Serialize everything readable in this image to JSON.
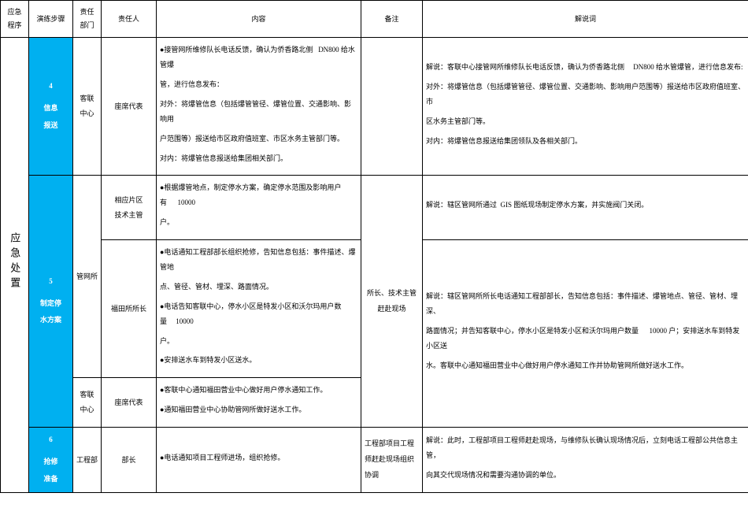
{
  "headers": {
    "program": "应急\n程序",
    "step": "演练步骤",
    "dept": "责任\n部门",
    "person": "责任人",
    "content": "内容",
    "remark": "备注",
    "script": "解说词"
  },
  "program_label": "应急处置",
  "steps": {
    "s4": {
      "num": "4",
      "name_l1": "信息",
      "name_l2": "报送"
    },
    "s5": {
      "num": "5",
      "name_l1": "制定停",
      "name_l2": "水方案"
    },
    "s6": {
      "num": "6",
      "name_l1": "抢修",
      "name_l2": "准备"
    }
  },
  "depts": {
    "kelian": "客联\n中心",
    "guanwang": "管网所",
    "gongcheng": "工程部"
  },
  "persons": {
    "zuoxi": "座席代表",
    "pianqu": "相应片区\n技术主管",
    "futian": "福田所所长",
    "buzhang": "部长"
  },
  "content": {
    "s4_1": "●接管网所维修队长电话反馈，确认为侨香路北侧",
    "s4_1b": "DN800 给水管爆",
    "s4_1c": "管，进行信息发布：",
    "s4_2": "对外：将爆管信息（包括爆管管径、爆管位置、交通影响、影响用",
    "s4_2b": "户范围等）报送给市区政府值班室、市区水务主管部门等。",
    "s4_3": "对内：将爆管信息报送给集团相关部门。",
    "s5a_1": "●根据爆管地点，制定停水方案，确定停水范围及影响用户有",
    "s5a_1n": "10000",
    "s5a_1c": "户。",
    "s5b_1": "●电话通知工程部部长组织抢修，告知信息包括：事件描述、爆管地",
    "s5b_1b": "点、管径、管材、埋深、路面情况。",
    "s5b_2": "●电话告知客联中心，停水小区是特发小区和沃尔玛用户数量",
    "s5b_2n": "10000",
    "s5b_2c": "户。",
    "s5b_3": "●安排送水车到特发小区送水。",
    "s5c_1": "●客联中心通知福田营业中心做好用户停水通知工作。",
    "s5c_2": "●通知福田营业中心协助管网所做好送水工作。",
    "s6_1": "●电话通知项目工程师进场，组织抢修。"
  },
  "remarks": {
    "s5": "所长、技术主管赶赴现场",
    "s6": "工程部项目工程师赶赴现场组织协调"
  },
  "script": {
    "s4_1a": "解说：客联中心接管网所维修队长电话反馈，确认为侨香路北侧",
    "s4_1b": "DN800 给水管爆管，进行信息发布:",
    "s4_2": "对外：将爆管信息（包括爆管管径、爆管位置、交通影响、影响用户范围等）报送给市区政府值班室、市",
    "s4_2b": "区水务主管部门等。",
    "s4_3": "对内：将爆管信息报送给集团领队及各相关部门。",
    "s5a_1a": "解说：辖区管网所通过",
    "s5a_1b": "GIS 图纸现场制定停水方案，并实施阀门关闭。",
    "s5b_1": "解说：辖区管网所所长电话通知工程部部长，告知信息包括：事件描述、爆管地点、管径、管材、埋深、",
    "s5b_2a": "路面情况；并告知客联中心，停水小区是特发小区和沃尔玛用户数量",
    "s5b_2b": "10000 户；安排送水车到特发小区送",
    "s5b_3": "水。客联中心通知福田营业中心做好用户停水通知工作并协助管网所做好送水工作。",
    "s6_1": "解说：此时，工程部项目工程师赶赴现场，与维修队长确认现场情况后，立刻电话工程部公共信息主管，",
    "s6_2": "向其交代现场情况和需要沟通协调的单位。"
  }
}
